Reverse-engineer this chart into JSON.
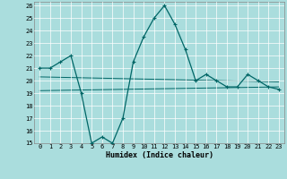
{
  "x": [
    0,
    1,
    2,
    3,
    4,
    5,
    6,
    7,
    8,
    9,
    10,
    11,
    12,
    13,
    14,
    15,
    16,
    17,
    18,
    19,
    20,
    21,
    22,
    23
  ],
  "y_main": [
    21,
    21,
    21.5,
    22,
    19,
    15,
    15.5,
    15,
    17,
    21.5,
    23.5,
    25,
    26,
    24.5,
    22.5,
    20,
    20.5,
    20,
    19.5,
    19.5,
    20.5,
    20,
    19.5,
    19.3
  ],
  "y_line1_x": [
    0,
    23
  ],
  "y_line1_y": [
    20.3,
    19.9
  ],
  "y_line2_x": [
    0,
    23
  ],
  "y_line2_y": [
    19.2,
    19.5
  ],
  "line_color": "#006666",
  "bg_color": "#aadddd",
  "grid_color": "#ffffff",
  "xlabel": "Humidex (Indice chaleur)",
  "ylim": [
    15,
    26
  ],
  "xlim": [
    -0.5,
    23.5
  ],
  "yticks": [
    15,
    16,
    17,
    18,
    19,
    20,
    21,
    22,
    23,
    24,
    25,
    26
  ],
  "xticks": [
    0,
    1,
    2,
    3,
    4,
    5,
    6,
    7,
    8,
    9,
    10,
    11,
    12,
    13,
    14,
    15,
    16,
    17,
    18,
    19,
    20,
    21,
    22,
    23
  ],
  "xlabel_fontsize": 6,
  "tick_fontsize": 5
}
